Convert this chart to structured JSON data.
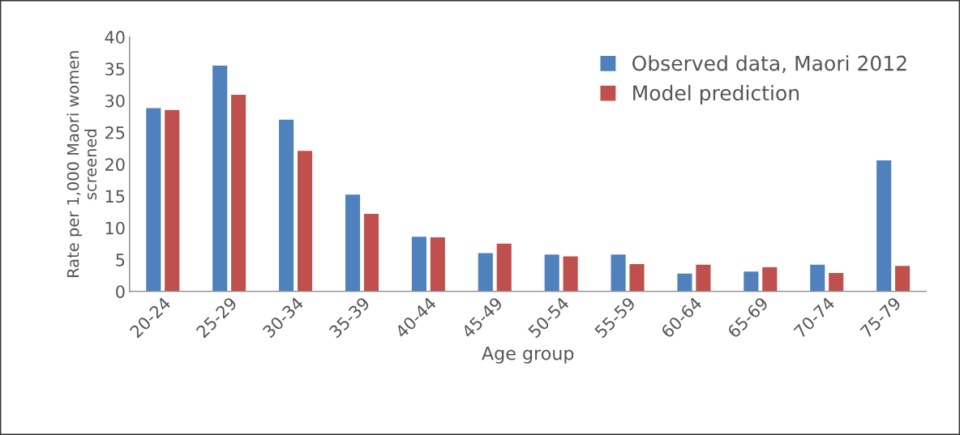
{
  "chart_data": {
    "type": "bar",
    "xlabel": "Age group",
    "ylabel": "Rate per 1,000 Maori women\nscreened",
    "categories": [
      "20-24",
      "25-29",
      "30-34",
      "35-39",
      "40-44",
      "45-49",
      "50-54",
      "55-59",
      "60-64",
      "65-69",
      "70-74",
      "75-79"
    ],
    "series": [
      {
        "name": "Observed data, Maori 2012",
        "color": "#4f81bd",
        "values": [
          28.9,
          35.6,
          27.1,
          15.3,
          8.7,
          6.1,
          5.9,
          5.9,
          2.9,
          3.2,
          4.3,
          20.7
        ]
      },
      {
        "name": "Model prediction",
        "color": "#c0504d",
        "values": [
          28.6,
          31.0,
          22.2,
          12.3,
          8.6,
          7.6,
          5.6,
          4.4,
          4.3,
          3.9,
          3.0,
          4.1
        ]
      }
    ],
    "ylim": [
      0,
      40
    ],
    "yticks": [
      0,
      5,
      10,
      15,
      20,
      25,
      30,
      35,
      40
    ],
    "grid": false,
    "legend": "top right"
  }
}
